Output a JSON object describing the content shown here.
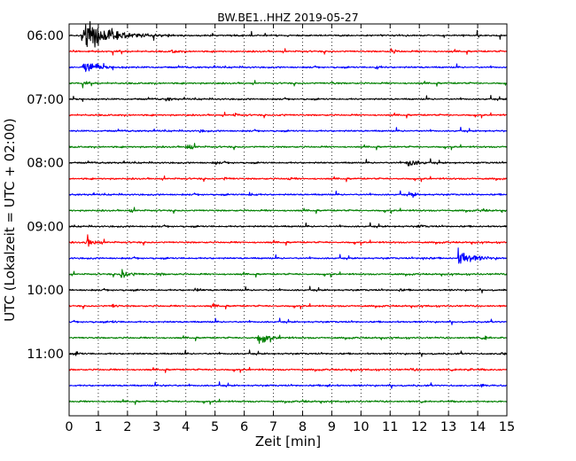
{
  "chart_data": {
    "type": "line",
    "title": "BW.BE1..HHZ 2019-05-27",
    "xlabel": "Zeit  [min]",
    "ylabel": "UTC (Lokalzeit = UTC + 02:00)",
    "xlim": [
      0,
      15
    ],
    "x_ticks": [
      0,
      1,
      2,
      3,
      4,
      5,
      6,
      7,
      8,
      9,
      10,
      11,
      12,
      13,
      14,
      15
    ],
    "x_tick_labels": [
      "0",
      "1",
      "2",
      "3",
      "4",
      "5",
      "6",
      "7",
      "8",
      "9",
      "10",
      "11",
      "12",
      "13",
      "14",
      "15"
    ],
    "y_tick_labels": [
      "06:00",
      "07:00",
      "08:00",
      "09:00",
      "10:00",
      "11:00"
    ],
    "y_tick_rows": [
      0,
      4,
      8,
      12,
      16,
      20
    ],
    "row_interval_minutes": 15,
    "grid": {
      "x": true,
      "style": "dotted",
      "y": false
    },
    "row_colors": [
      "#000000",
      "#ff0000",
      "#0000ff",
      "#008000"
    ],
    "rows": [
      {
        "start": "06:00",
        "color": "#000000",
        "events": [
          {
            "t": 0.5,
            "amp": 1.25
          },
          {
            "t": 1.45,
            "amp": 0.22
          }
        ]
      },
      {
        "start": "06:15",
        "color": "#ff0000",
        "events": [
          {
            "t": 3.55,
            "amp": 0.15
          },
          {
            "t": 11.05,
            "amp": 0.2
          }
        ]
      },
      {
        "start": "06:30",
        "color": "#0000ff",
        "events": [
          {
            "t": 0.5,
            "amp": 0.6
          },
          {
            "t": 10.5,
            "amp": 0.18
          }
        ]
      },
      {
        "start": "06:45",
        "color": "#008000",
        "events": [
          {
            "t": 0.5,
            "amp": 0.12
          },
          {
            "t": 9.0,
            "amp": 0.1
          }
        ]
      },
      {
        "start": "07:00",
        "color": "#000000",
        "events": [
          {
            "t": 3.35,
            "amp": 0.15
          }
        ]
      },
      {
        "start": "07:15",
        "color": "#ff0000",
        "events": [
          {
            "t": 5.65,
            "amp": 0.12
          },
          {
            "t": 7.2,
            "amp": 0.1
          }
        ]
      },
      {
        "start": "07:30",
        "color": "#0000ff",
        "events": [
          {
            "t": 4.5,
            "amp": 0.08
          }
        ]
      },
      {
        "start": "07:45",
        "color": "#008000",
        "events": [
          {
            "t": 4.05,
            "amp": 0.3
          }
        ]
      },
      {
        "start": "08:00",
        "color": "#000000",
        "events": [
          {
            "t": 11.6,
            "amp": 0.42
          },
          {
            "t": 5.0,
            "amp": 0.1
          }
        ]
      },
      {
        "start": "08:15",
        "color": "#ff0000",
        "events": [
          {
            "t": 5.35,
            "amp": 0.1
          },
          {
            "t": 7.5,
            "amp": 0.1
          }
        ]
      },
      {
        "start": "08:30",
        "color": "#0000ff",
        "events": [
          {
            "t": 6.2,
            "amp": 0.2
          },
          {
            "t": 11.75,
            "amp": 0.2
          }
        ]
      },
      {
        "start": "08:45",
        "color": "#008000",
        "events": [
          {
            "t": 2.1,
            "amp": 0.1
          },
          {
            "t": 14.15,
            "amp": 0.12
          }
        ]
      },
      {
        "start": "09:00",
        "color": "#000000",
        "events": [
          {
            "t": 12.0,
            "amp": 0.1
          }
        ]
      },
      {
        "start": "09:15",
        "color": "#ff0000",
        "events": [
          {
            "t": 0.6,
            "amp": 0.4
          }
        ]
      },
      {
        "start": "09:30",
        "color": "#0000ff",
        "events": [
          {
            "t": 12.15,
            "amp": 0.18
          },
          {
            "t": 13.35,
            "amp": 0.65
          }
        ]
      },
      {
        "start": "09:45",
        "color": "#008000",
        "events": [
          {
            "t": 1.8,
            "amp": 0.4
          },
          {
            "t": 3.1,
            "amp": 0.1
          }
        ]
      },
      {
        "start": "10:00",
        "color": "#000000",
        "events": [
          {
            "t": 4.35,
            "amp": 0.15
          },
          {
            "t": 11.3,
            "amp": 0.08
          }
        ]
      },
      {
        "start": "10:15",
        "color": "#ff0000",
        "events": [
          {
            "t": 1.5,
            "amp": 0.15
          },
          {
            "t": 4.9,
            "amp": 0.1
          }
        ]
      },
      {
        "start": "10:30",
        "color": "#0000ff",
        "events": [
          {
            "t": 1.5,
            "amp": 0.08
          }
        ]
      },
      {
        "start": "10:45",
        "color": "#008000",
        "events": [
          {
            "t": 6.5,
            "amp": 0.48
          },
          {
            "t": 14.25,
            "amp": 0.1
          }
        ]
      },
      {
        "start": "11:00",
        "color": "#000000",
        "events": [
          {
            "t": 0.25,
            "amp": 0.1
          },
          {
            "t": 14.8,
            "amp": 0.1
          }
        ]
      },
      {
        "start": "11:15",
        "color": "#ff0000",
        "events": [
          {
            "t": 11.75,
            "amp": 0.1
          },
          {
            "t": 13.6,
            "amp": 0.12
          }
        ]
      },
      {
        "start": "11:30",
        "color": "#0000ff",
        "events": [
          {
            "t": 3.3,
            "amp": 0.1
          },
          {
            "t": 8.85,
            "amp": 0.12
          },
          {
            "t": 14.15,
            "amp": 0.12
          }
        ]
      },
      {
        "start": "11:45",
        "color": "#008000",
        "events": [
          {
            "t": 8.0,
            "amp": 0.08
          }
        ]
      }
    ]
  }
}
